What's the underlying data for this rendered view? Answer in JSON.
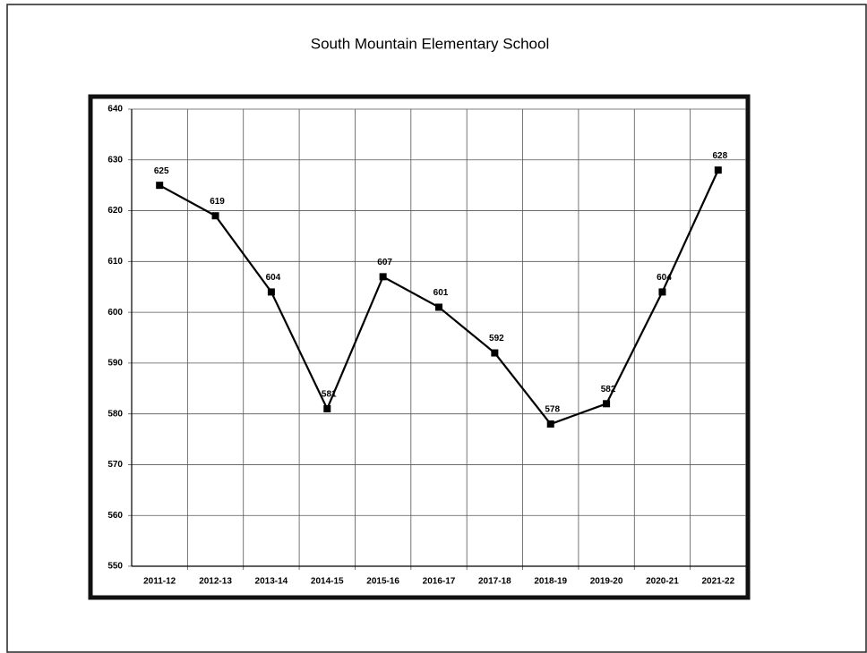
{
  "chart_data": {
    "type": "line",
    "title": "South Mountain Elementary School",
    "categories": [
      "2011-12",
      "2012-13",
      "2013-14",
      "2014-15",
      "2015-16",
      "2016-17",
      "2017-18",
      "2018-19",
      "2019-20",
      "2020-21",
      "2021-22"
    ],
    "values": [
      625,
      619,
      604,
      581,
      607,
      601,
      592,
      578,
      582,
      604,
      628
    ],
    "color": "#000000",
    "marker": "square",
    "ylim": [
      550,
      640
    ],
    "yticks": [
      550,
      560,
      570,
      580,
      590,
      600,
      610,
      620,
      630,
      640
    ],
    "grid": true
  }
}
